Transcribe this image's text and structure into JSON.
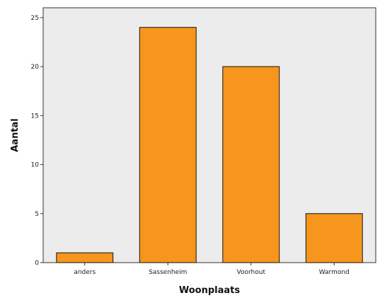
{
  "chart_data": {
    "type": "bar",
    "categories": [
      "anders",
      "Sassenheim",
      "Voorhout",
      "Warmond"
    ],
    "values": [
      1,
      24,
      20,
      5
    ],
    "xlabel": "Woonplaats",
    "ylabel": "Aantal",
    "ylim": [
      0,
      26
    ],
    "yticks": [
      0,
      5,
      10,
      15,
      20,
      25
    ],
    "ytick_labels": [
      "0",
      "5",
      "10",
      "15",
      "20",
      "25"
    ],
    "grid": false,
    "colors": {
      "bar": "#f7961c",
      "bar_stroke": "#111111",
      "plot_background": "#ececec"
    }
  }
}
